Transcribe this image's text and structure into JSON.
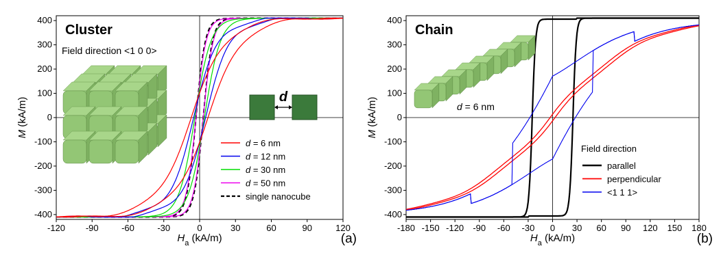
{
  "chart_data": [
    {
      "type": "line",
      "panel_label": "(a)",
      "title": "Cluster",
      "annotation": "Field direction <1 0 0>",
      "inset_label": "d",
      "xlabel_main": "H",
      "xlabel_sub": "a",
      "xlabel_unit": " (kA/m)",
      "ylabel_main": "M",
      "ylabel_unit": " (kA/m)",
      "xlim": [
        -120,
        120
      ],
      "ylim": [
        -420,
        420
      ],
      "xticks": [
        -120,
        -90,
        -60,
        -30,
        0,
        30,
        60,
        90,
        120
      ],
      "yticks": [
        -400,
        -300,
        -200,
        -100,
        0,
        100,
        200,
        300,
        400
      ],
      "legend_position": "lower-right",
      "series": [
        {
          "name": "d = 6 nm",
          "legend_var": "d",
          "legend_rest": " = 6 nm",
          "color": "#ff0000",
          "dash": false,
          "hc": 7,
          "k": 0.033,
          "steps": 9
        },
        {
          "name": "d = 12 nm",
          "legend_var": "d",
          "legend_rest": " = 12 nm",
          "color": "#0000ee",
          "dash": false,
          "hc": 5,
          "k": 0.045,
          "steps": 6
        },
        {
          "name": "d = 30 nm",
          "legend_var": "d",
          "legend_rest": " = 30 nm",
          "color": "#00dd00",
          "dash": false,
          "hc": 4,
          "k": 0.075,
          "steps": 0
        },
        {
          "name": "d = 50 nm",
          "legend_var": "d",
          "legend_rest": " = 50 nm",
          "color": "#ee00ee",
          "dash": false,
          "hc": 3,
          "k": 0.12,
          "steps": 0
        },
        {
          "name": "single nanocube",
          "legend_var": "",
          "legend_rest": "single nanocube",
          "color": "#000000",
          "dash": true,
          "hc": 3,
          "k": 0.13,
          "steps": 0
        }
      ]
    },
    {
      "type": "line",
      "panel_label": "(b)",
      "title": "Chain",
      "annotation_var": "d",
      "annotation_rest": " = 6 nm",
      "legend_title": "Field direction",
      "xlabel_main": "H",
      "xlabel_sub": "a",
      "xlabel_unit": " (kA/m)",
      "ylabel_main": "M",
      "ylabel_unit": " (kA/m)",
      "xlim": [
        -180,
        180
      ],
      "ylim": [
        -420,
        420
      ],
      "xticks": [
        -180,
        -150,
        -120,
        -90,
        -60,
        -30,
        0,
        30,
        60,
        90,
        120,
        150,
        180
      ],
      "yticks": [
        -400,
        -300,
        -200,
        -100,
        0,
        100,
        200,
        300,
        400
      ],
      "legend_position": "lower-right",
      "series": [
        {
          "name": "parallel",
          "color": "#000000",
          "width": 2.2,
          "kind": "square",
          "hc": 25
        },
        {
          "name": "perpendicular",
          "color": "#ff0000",
          "width": 1.3,
          "kind": "linear",
          "hc": 3
        },
        {
          "name": "<1 1 1>",
          "color": "#0000ee",
          "width": 1.1,
          "kind": "diag",
          "hc": 50
        }
      ]
    }
  ]
}
